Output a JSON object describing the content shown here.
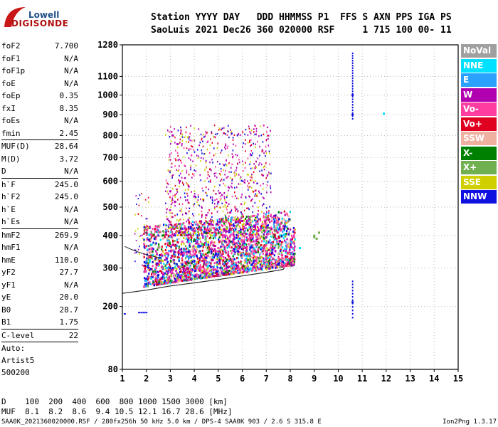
{
  "logo": {
    "line1": "Lowell",
    "line2": "DIGISONDE"
  },
  "header": {
    "line1": "Station YYYY DAY   DDD HHMMSS P1  FFS S AXN PPS IGA PS",
    "line2": "SaoLuis 2021 Dec26 360 020000 RSF     1 715 100 00- 11"
  },
  "params": [
    {
      "name": "foF2",
      "value": "7.700"
    },
    {
      "name": "foF1",
      "value": "N/A"
    },
    {
      "name": "foF1p",
      "value": "N/A"
    },
    {
      "name": "foE",
      "value": "N/A"
    },
    {
      "name": "foEp",
      "value": "0.35"
    },
    {
      "name": "fxI",
      "value": "8.35"
    },
    {
      "name": "foEs",
      "value": "N/A"
    },
    {
      "name": "fmin",
      "value": "2.45"
    },
    {
      "sep": true
    },
    {
      "name": "MUF(D)",
      "value": "28.64"
    },
    {
      "name": "M(D)",
      "value": "3.72"
    },
    {
      "name": "D",
      "value": "N/A"
    },
    {
      "sep": true
    },
    {
      "name": "h`F",
      "value": "245.0"
    },
    {
      "name": "h`F2",
      "value": "245.0"
    },
    {
      "name": "h`E",
      "value": "N/A"
    },
    {
      "name": "h`Es",
      "value": "N/A"
    },
    {
      "sep": true
    },
    {
      "name": "hmF2",
      "value": "269.9"
    },
    {
      "name": "hmF1",
      "value": "N/A"
    },
    {
      "name": "hmE",
      "value": "110.0"
    },
    {
      "name": "yF2",
      "value": "27.7"
    },
    {
      "name": "yF1",
      "value": "N/A"
    },
    {
      "name": "yE",
      "value": "20.0"
    },
    {
      "name": "B0",
      "value": "28.7"
    },
    {
      "name": "B1",
      "value": "1.75"
    },
    {
      "sep": true
    },
    {
      "name": "C-level",
      "value": "22"
    },
    {
      "sep": true
    }
  ],
  "autoscale": {
    "line1": "Auto:",
    "line2": "Artist5",
    "line3": "500200"
  },
  "legend": [
    {
      "label": "NoVal",
      "color": "#a0a0a0"
    },
    {
      "label": "NNE",
      "color": "#00e0ff"
    },
    {
      "label": "E",
      "color": "#2aa0ff"
    },
    {
      "label": "W",
      "color": "#b000b0"
    },
    {
      "label": "Vo-",
      "color": "#ff3ca0"
    },
    {
      "label": "Vo+",
      "color": "#e00020"
    },
    {
      "label": "SSW",
      "color": "#f0b0a0"
    },
    {
      "label": "X-",
      "color": "#008000"
    },
    {
      "label": "X+",
      "color": "#70b050"
    },
    {
      "label": "SSE",
      "color": "#d0d000"
    },
    {
      "label": "NNW",
      "color": "#1010e0"
    }
  ],
  "muf_table": {
    "d_label": "D",
    "muf_label": "MUF",
    "d_values": [
      "100",
      "200",
      "400",
      "600",
      "800",
      "1000",
      "1500",
      "3000"
    ],
    "d_unit": "[km]",
    "muf_values": [
      "8.1",
      "8.2",
      "8.6",
      "9.4",
      "10.5",
      "12.1",
      "16.7",
      "28.6"
    ],
    "muf_unit": "[MHz]"
  },
  "footer": {
    "left": "SAA0K_2021360020000.RSF / 280fx256h 50 kHz 5.0 km / DPS-4 SAA0K 903 / 2.6 S 315.8 E",
    "right": "Ion2Png 1.3.17"
  },
  "chart_data": {
    "type": "scatter",
    "xlabel": "",
    "ylabel": "",
    "xlim": [
      1,
      15
    ],
    "ylim": [
      80,
      1280
    ],
    "x_ticks": [
      "1",
      "2",
      "3",
      "4",
      "5",
      "6",
      "7",
      "8",
      "9",
      "10",
      "11",
      "12",
      "13",
      "14",
      "15"
    ],
    "y_ticks": [
      "80",
      "200",
      "300",
      "400",
      "500",
      "600",
      "700",
      "800",
      "900",
      "1000",
      "1100",
      "1280"
    ],
    "y_tick_values": [
      80,
      200,
      300,
      400,
      500,
      600,
      700,
      800,
      900,
      1000,
      1100,
      1280
    ],
    "y_scale": "sqrt",
    "grid": "dotted",
    "trace": {
      "name": "",
      "x": [
        1.0,
        2.0,
        3.0,
        4.0,
        5.0,
        6.0,
        7.0,
        7.7
      ],
      "y": [
        232,
        240,
        251,
        259,
        268,
        278,
        288,
        296
      ]
    },
    "series": [
      {
        "name": "W",
        "x": [
          3.0,
          3.2,
          3.4,
          4.0,
          4.5,
          5.0,
          5.5,
          6.0,
          6.5,
          3.1,
          3.3
        ],
        "y": [
          560,
          520,
          600,
          540,
          470,
          520,
          480,
          450,
          430,
          800,
          760
        ]
      },
      {
        "name": "Vo-",
        "x": [
          3.5,
          4.0,
          4.5,
          5.0,
          5.5,
          6.0,
          6.5,
          7.0,
          7.5,
          5.2
        ],
        "y": [
          380,
          340,
          420,
          360,
          400,
          380,
          350,
          330,
          320,
          450
        ]
      },
      {
        "name": "NNW",
        "x": [
          2.0,
          2.5,
          3.0,
          3.5,
          4.0,
          4.5,
          5.0,
          10.6,
          10.6,
          10.6
        ],
        "y": [
          270,
          280,
          300,
          310,
          320,
          330,
          340,
          900,
          1000,
          210
        ]
      },
      {
        "name": "X+",
        "x": [
          9.0,
          9.1,
          9.2,
          9.0
        ],
        "y": [
          400,
          390,
          410,
          395
        ]
      },
      {
        "name": "NNE",
        "x": [
          11.9,
          8.4
        ],
        "y": [
          905,
          360
        ]
      }
    ]
  }
}
